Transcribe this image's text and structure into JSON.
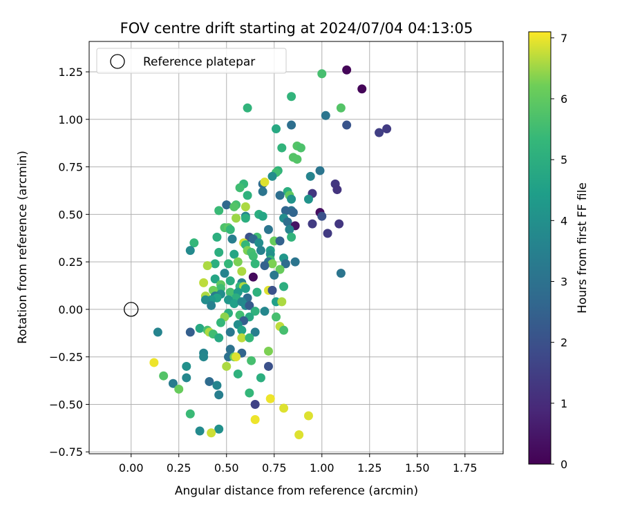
{
  "chart_data": {
    "type": "scatter",
    "title": "FOV centre drift starting at 2024/07/04 04:13:05",
    "xlabel": "Angular distance from reference (arcmin)",
    "ylabel": "Rotation from reference (arcmin)",
    "xlim": [
      -0.22,
      1.95
    ],
    "ylim": [
      -0.76,
      1.41
    ],
    "x_ticks": [
      "0.00",
      "0.25",
      "0.50",
      "0.75",
      "1.00",
      "1.25",
      "1.50",
      "1.75"
    ],
    "y_ticks": [
      "−0.75",
      "−0.50",
      "−0.25",
      "0.00",
      "0.25",
      "0.50",
      "0.75",
      "1.00",
      "1.25"
    ],
    "grid": true,
    "legend": {
      "position": "top-left",
      "entries": [
        "Reference platepar"
      ]
    },
    "reference_point": {
      "x": 0.0,
      "y": 0.0
    },
    "colorbar": {
      "label": "Hours from first FF file",
      "min": 0,
      "max": 7.1,
      "ticks": [
        "0",
        "1",
        "2",
        "3",
        "4",
        "5",
        "6",
        "7"
      ],
      "colormap": "viridis"
    },
    "points": [
      [
        1.13,
        1.26,
        0.1
      ],
      [
        1.21,
        1.16,
        0.1
      ],
      [
        1.0,
        1.24,
        5.6
      ],
      [
        0.84,
        1.12,
        5.2
      ],
      [
        1.1,
        1.06,
        5.8
      ],
      [
        0.61,
        1.06,
        5.2
      ],
      [
        1.02,
        1.02,
        3.1
      ],
      [
        1.13,
        0.97,
        2.1
      ],
      [
        1.3,
        0.93,
        1.5
      ],
      [
        1.34,
        0.95,
        1.4
      ],
      [
        0.76,
        0.95,
        4.8
      ],
      [
        0.84,
        0.97,
        2.9
      ],
      [
        0.79,
        0.85,
        5.2
      ],
      [
        0.87,
        0.86,
        5.8
      ],
      [
        0.89,
        0.85,
        5.7
      ],
      [
        0.85,
        0.8,
        5.8
      ],
      [
        0.87,
        0.79,
        5.8
      ],
      [
        0.99,
        0.73,
        3.1
      ],
      [
        0.77,
        0.73,
        5.2
      ],
      [
        0.76,
        0.72,
        5.5
      ],
      [
        0.94,
        0.7,
        3.6
      ],
      [
        0.69,
        0.66,
        2.8
      ],
      [
        0.7,
        0.67,
        6.9
      ],
      [
        0.59,
        0.66,
        5.3
      ],
      [
        0.57,
        0.64,
        5.5
      ],
      [
        1.07,
        0.66,
        1.3
      ],
      [
        0.74,
        0.7,
        3.9
      ],
      [
        1.08,
        0.63,
        1.2
      ],
      [
        0.95,
        0.61,
        1.3
      ],
      [
        0.69,
        0.62,
        3.1
      ],
      [
        0.82,
        0.62,
        5.0
      ],
      [
        0.83,
        0.6,
        6.0
      ],
      [
        0.61,
        0.6,
        5.1
      ],
      [
        0.78,
        0.6,
        2.9
      ],
      [
        0.84,
        0.58,
        4.1
      ],
      [
        0.93,
        0.58,
        4.1
      ],
      [
        0.5,
        0.55,
        2.7
      ],
      [
        0.55,
        0.55,
        5.6
      ],
      [
        0.54,
        0.54,
        5.8
      ],
      [
        0.6,
        0.54,
        6.6
      ],
      [
        0.84,
        0.52,
        3.0
      ],
      [
        0.81,
        0.52,
        2.6
      ],
      [
        0.46,
        0.52,
        5.4
      ],
      [
        0.99,
        0.51,
        0.3
      ],
      [
        0.6,
        0.49,
        3.6
      ],
      [
        0.6,
        0.48,
        5.0
      ],
      [
        0.55,
        0.48,
        6.5
      ],
      [
        0.67,
        0.5,
        5.0
      ],
      [
        0.69,
        0.49,
        4.7
      ],
      [
        0.85,
        0.51,
        2.6
      ],
      [
        1.0,
        0.49,
        2.0
      ],
      [
        0.8,
        0.48,
        3.9
      ],
      [
        0.82,
        0.46,
        2.9
      ],
      [
        0.86,
        0.44,
        0.4
      ],
      [
        0.95,
        0.45,
        1.4
      ],
      [
        1.09,
        0.45,
        1.3
      ],
      [
        0.49,
        0.43,
        5.7
      ],
      [
        0.51,
        0.43,
        5.9
      ],
      [
        0.52,
        0.42,
        5.3
      ],
      [
        0.72,
        0.42,
        3.1
      ],
      [
        0.83,
        0.42,
        3.6
      ],
      [
        1.03,
        0.4,
        1.4
      ],
      [
        0.84,
        0.38,
        5.2
      ],
      [
        0.45,
        0.38,
        5.0
      ],
      [
        0.66,
        0.38,
        5.5
      ],
      [
        0.62,
        0.38,
        2.0
      ],
      [
        0.64,
        0.37,
        2.7
      ],
      [
        0.53,
        0.37,
        3.4
      ],
      [
        0.59,
        0.35,
        6.8
      ],
      [
        0.6,
        0.34,
        5.3
      ],
      [
        0.75,
        0.36,
        6.1
      ],
      [
        0.78,
        0.36,
        2.5
      ],
      [
        0.67,
        0.35,
        3.9
      ],
      [
        0.33,
        0.35,
        5.3
      ],
      [
        0.31,
        0.31,
        3.8
      ],
      [
        0.68,
        0.31,
        3.5
      ],
      [
        0.73,
        0.31,
        4.5
      ],
      [
        0.61,
        0.31,
        6.3
      ],
      [
        0.63,
        0.3,
        5.6
      ],
      [
        0.46,
        0.3,
        5.0
      ],
      [
        0.73,
        0.29,
        4.0
      ],
      [
        0.54,
        0.29,
        4.7
      ],
      [
        0.64,
        0.28,
        5.5
      ],
      [
        0.73,
        0.26,
        5.3
      ],
      [
        0.72,
        0.25,
        3.0
      ],
      [
        0.8,
        0.27,
        4.2
      ],
      [
        0.44,
        0.24,
        5.0
      ],
      [
        0.4,
        0.23,
        6.6
      ],
      [
        0.56,
        0.25,
        6.3
      ],
      [
        0.74,
        0.24,
        6.3
      ],
      [
        0.51,
        0.24,
        5.3
      ],
      [
        0.65,
        0.24,
        5.3
      ],
      [
        0.81,
        0.24,
        2.8
      ],
      [
        0.86,
        0.25,
        3.1
      ],
      [
        0.7,
        0.23,
        2.5
      ],
      [
        0.49,
        0.19,
        3.6
      ],
      [
        0.78,
        0.21,
        6.1
      ],
      [
        0.58,
        0.2,
        6.6
      ],
      [
        0.75,
        0.18,
        3.2
      ],
      [
        0.64,
        0.17,
        0.2
      ],
      [
        0.44,
        0.16,
        4.7
      ],
      [
        0.52,
        0.15,
        4.9
      ],
      [
        0.58,
        0.14,
        3.5
      ],
      [
        0.38,
        0.14,
        6.7
      ],
      [
        0.47,
        0.13,
        6.0
      ],
      [
        0.57,
        0.12,
        5.2
      ],
      [
        0.59,
        0.12,
        6.6
      ],
      [
        1.1,
        0.19,
        3.1
      ],
      [
        0.8,
        0.12,
        5.0
      ],
      [
        0.6,
        0.11,
        4.5
      ],
      [
        0.47,
        0.11,
        5.5
      ],
      [
        0.43,
        0.1,
        6.2
      ],
      [
        0.72,
        0.1,
        6.9
      ],
      [
        0.52,
        0.09,
        5.6
      ],
      [
        0.56,
        0.09,
        4.3
      ],
      [
        0.66,
        0.09,
        5.1
      ],
      [
        0.47,
        0.08,
        3.9
      ],
      [
        0.74,
        0.1,
        2.0
      ],
      [
        0.44,
        0.07,
        3.3
      ],
      [
        0.45,
        0.06,
        4.6
      ],
      [
        0.39,
        0.07,
        6.6
      ],
      [
        0.61,
        0.06,
        2.8
      ],
      [
        0.55,
        0.06,
        5.0
      ],
      [
        0.42,
        0.05,
        4.3
      ],
      [
        0.39,
        0.05,
        3.9
      ],
      [
        0.51,
        0.05,
        4.2
      ],
      [
        0.54,
        0.03,
        4.5
      ],
      [
        0.58,
        0.04,
        3.7
      ],
      [
        0.76,
        0.04,
        4.5
      ],
      [
        0.79,
        0.04,
        6.6
      ],
      [
        0.42,
        0.02,
        3.5
      ],
      [
        0.6,
        0.02,
        3.8
      ],
      [
        0.62,
        0.02,
        2.3
      ],
      [
        0.7,
        -0.01,
        3.7
      ],
      [
        0.65,
        -0.01,
        5.1
      ],
      [
        0.51,
        -0.02,
        5.0
      ],
      [
        0.57,
        -0.03,
        5.5
      ],
      [
        0.62,
        -0.04,
        4.8
      ],
      [
        0.49,
        -0.04,
        6.4
      ],
      [
        0.59,
        -0.06,
        2.4
      ],
      [
        0.76,
        -0.04,
        5.6
      ],
      [
        0.47,
        -0.07,
        5.3
      ],
      [
        0.56,
        -0.08,
        3.9
      ],
      [
        0.78,
        -0.09,
        6.7
      ],
      [
        0.36,
        -0.1,
        4.8
      ],
      [
        0.4,
        -0.11,
        5.6
      ],
      [
        0.58,
        -0.11,
        4.6
      ],
      [
        0.8,
        -0.11,
        5.6
      ],
      [
        0.14,
        -0.12,
        3.6
      ],
      [
        0.31,
        -0.12,
        2.4
      ],
      [
        0.41,
        -0.12,
        6.6
      ],
      [
        0.52,
        -0.12,
        3.2
      ],
      [
        0.65,
        -0.12,
        3.4
      ],
      [
        0.43,
        -0.13,
        5.5
      ],
      [
        0.46,
        -0.15,
        4.8
      ],
      [
        0.58,
        -0.15,
        6.7
      ],
      [
        0.62,
        -0.15,
        5.3
      ],
      [
        0.52,
        -0.21,
        3.0
      ],
      [
        0.38,
        -0.23,
        3.6
      ],
      [
        0.58,
        -0.23,
        2.6
      ],
      [
        0.72,
        -0.22,
        6.3
      ],
      [
        0.38,
        -0.25,
        3.7
      ],
      [
        0.51,
        -0.25,
        3.0
      ],
      [
        0.54,
        -0.25,
        6.2
      ],
      [
        0.55,
        -0.25,
        6.9
      ],
      [
        0.63,
        -0.27,
        5.6
      ],
      [
        0.12,
        -0.28,
        7.0
      ],
      [
        0.29,
        -0.3,
        4.0
      ],
      [
        0.5,
        -0.3,
        6.6
      ],
      [
        0.72,
        -0.3,
        2.0
      ],
      [
        0.17,
        -0.35,
        5.8
      ],
      [
        0.29,
        -0.36,
        3.7
      ],
      [
        0.56,
        -0.34,
        5.1
      ],
      [
        0.68,
        -0.36,
        5.0
      ],
      [
        0.22,
        -0.39,
        3.3
      ],
      [
        0.41,
        -0.38,
        2.8
      ],
      [
        0.45,
        -0.4,
        3.6
      ],
      [
        0.25,
        -0.42,
        6.1
      ],
      [
        0.46,
        -0.45,
        3.4
      ],
      [
        0.62,
        -0.44,
        5.3
      ],
      [
        0.73,
        -0.47,
        7.0
      ],
      [
        0.65,
        -0.5,
        1.6
      ],
      [
        0.8,
        -0.52,
        6.9
      ],
      [
        0.31,
        -0.55,
        5.4
      ],
      [
        0.65,
        -0.58,
        7.0
      ],
      [
        0.93,
        -0.56,
        6.9
      ],
      [
        0.46,
        -0.63,
        4.0
      ],
      [
        0.36,
        -0.64,
        3.8
      ],
      [
        0.42,
        -0.65,
        6.8
      ],
      [
        0.88,
        -0.66,
        6.9
      ]
    ]
  }
}
